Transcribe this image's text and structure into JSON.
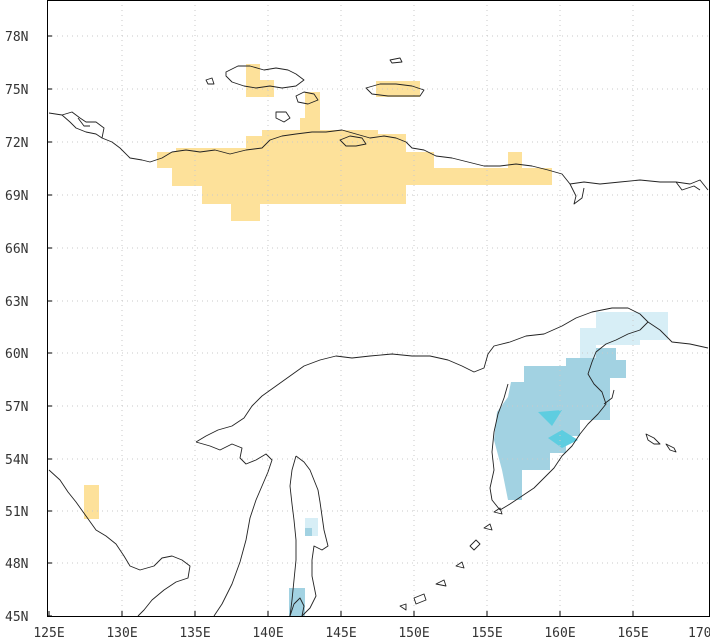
{
  "map": {
    "lat_labels": [
      "78N",
      "75N",
      "72N",
      "69N",
      "66N",
      "63N",
      "60N",
      "57N",
      "54N",
      "51N",
      "48N",
      "45N"
    ],
    "lon_labels": [
      "125E",
      "130E",
      "135E",
      "140E",
      "145E",
      "150E",
      "155E",
      "160E",
      "165E",
      "170"
    ],
    "colors": {
      "warm_anomaly": "#fde19a",
      "cool_light": "#d7eef6",
      "cool_medium": "#a2d2e2",
      "cool_strong": "#5ecde0",
      "coastline": "#222222",
      "grid": "#c9c9c9",
      "frame": "#000000"
    }
  }
}
